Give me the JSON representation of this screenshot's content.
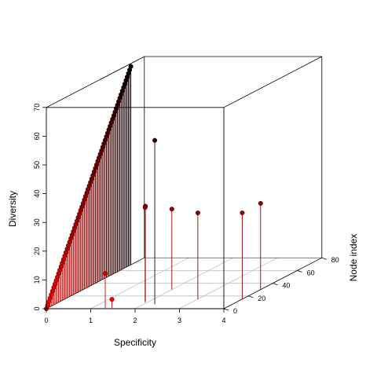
{
  "chart_data": {
    "type": "scatter3d",
    "xlabel": "Specificity",
    "ylabel": "Node index",
    "zlabel": "Diversity",
    "xlim": [
      0,
      4
    ],
    "ylim": [
      0,
      80
    ],
    "zlim": [
      0,
      70
    ],
    "x_ticks": [
      "0",
      "1",
      "2",
      "3",
      "4"
    ],
    "y_ticks": [
      "0",
      "20",
      "40",
      "60",
      "80"
    ],
    "z_ticks": [
      "0",
      "10",
      "20",
      "30",
      "40",
      "50",
      "60",
      "70"
    ],
    "grid": true,
    "point_type": "h",
    "colors": {
      "low": "#ff0000",
      "high": "#000000",
      "box": "#000000",
      "grid": "#bebebe"
    },
    "diagonal_series": {
      "n": 70,
      "x": 0,
      "y_start": 0,
      "y_end": 69,
      "z_start": 0,
      "z_end": 69
    },
    "extra_points": [
      {
        "x": 1.45,
        "y": 1,
        "z": 3
      },
      {
        "x": 1.3,
        "y": 1,
        "z": 12
      },
      {
        "x": 1.95,
        "y": 10,
        "z": 33
      },
      {
        "x": 1.9,
        "y": 12,
        "z": 33
      },
      {
        "x": 2.0,
        "y": 30,
        "z": 28
      },
      {
        "x": 2.25,
        "y": 7,
        "z": 57
      },
      {
        "x": 3.0,
        "y": 15,
        "z": 30
      },
      {
        "x": 4.0,
        "y": 15,
        "z": 30
      },
      {
        "x": 4.0,
        "y": 30,
        "z": 30
      }
    ]
  }
}
